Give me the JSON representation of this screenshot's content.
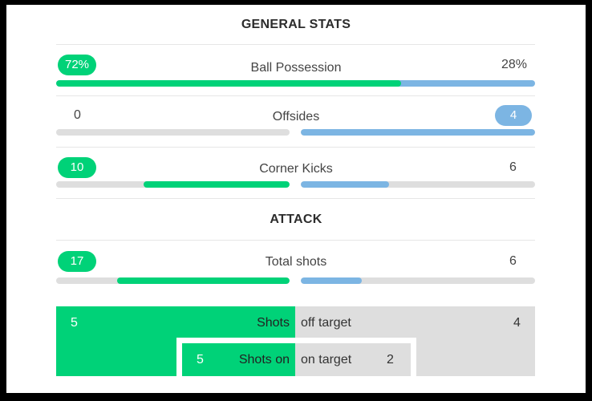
{
  "colors": {
    "home": "#00d278",
    "away": "#7cb5e3",
    "track": "#dedede"
  },
  "general": {
    "title": "GENERAL STATS",
    "possession": {
      "label": "Ball Possession",
      "home": "72%",
      "away": "28%",
      "home_share": 72
    },
    "offsides": {
      "label": "Offsides",
      "home": "0",
      "away": "4",
      "home_share": 0,
      "away_share": 100
    },
    "corners": {
      "label": "Corner Kicks",
      "home": "10",
      "away": "6",
      "home_share": 62.5,
      "away_share": 37.5
    }
  },
  "attack": {
    "title": "ATTACK",
    "total_shots": {
      "label": "Total shots",
      "home": "17",
      "away": "6",
      "home_share": 73.9,
      "away_share": 26.1
    },
    "shots_off": {
      "home": "5",
      "home_label": "Shots",
      "away_label": "off target",
      "away": "4"
    },
    "shots_on": {
      "home": "5",
      "home_label": "Shots on",
      "away_label": "on target",
      "away": "2"
    }
  }
}
